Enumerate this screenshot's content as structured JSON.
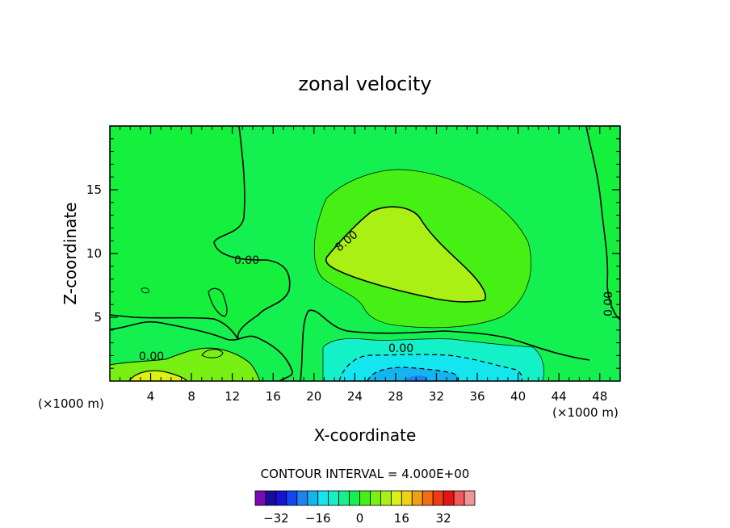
{
  "chart_data": {
    "type": "heatmap",
    "title": "zonal velocity",
    "xlabel": "X-coordinate",
    "ylabel": "Z-coordinate",
    "x_unit_label": "(×1000 m)",
    "xlim": [
      0,
      50
    ],
    "ylim": [
      0,
      20
    ],
    "x_ticks": [
      4,
      8,
      12,
      16,
      20,
      24,
      28,
      32,
      36,
      40,
      44,
      48
    ],
    "y_ticks": [
      5,
      10,
      15
    ],
    "contour_interval_label": "CONTOUR INTERVAL = 4.000E+00",
    "contour_interval": 4.0,
    "contour_labels": [
      "0.00",
      "8.00",
      "0.00",
      "0.00",
      "0.00"
    ],
    "colorbar": {
      "colors": [
        "#7a0ab4",
        "#1a0aa0",
        "#1414d2",
        "#1446f0",
        "#1e82f0",
        "#14b4f0",
        "#14e6f0",
        "#14f0c8",
        "#14f08c",
        "#14f050",
        "#46f014",
        "#78f014",
        "#aaf014",
        "#dcf014",
        "#f0d214",
        "#f0a014",
        "#f06e14",
        "#f03c14",
        "#e61414",
        "#f05a5a",
        "#f09696"
      ],
      "tick_labels": [
        "-32",
        "-16",
        "0",
        "16",
        "32"
      ],
      "tick_values": [
        -32,
        -16,
        0,
        16,
        32
      ]
    },
    "field_description_values": {
      "background_level": 0,
      "upper_jet_max_level": 12,
      "lower_jet_min_level": -24,
      "surface_max_level": 16
    },
    "grid": false
  }
}
